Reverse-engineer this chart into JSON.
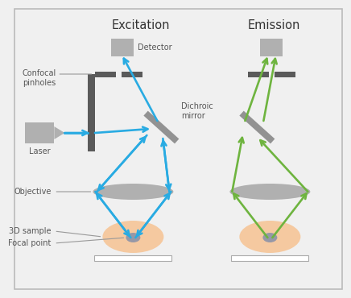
{
  "title_excitation": "Excitation",
  "title_emission": "Emission",
  "label_detector": "Detector",
  "label_pinholes": "Confocal\npinholes",
  "label_dichroic": "Dichroic\nmirror",
  "label_laser": "Laser",
  "label_objective": "Objective",
  "label_3dsample": "3D sample",
  "label_focal": "Focal point",
  "bg_color": "#f0f0f0",
  "blue": "#29ABE2",
  "green": "#6EB43F",
  "gray_dark": "#5a5a5a",
  "gray_light": "#b0b0b0",
  "gray_mid": "#888888",
  "peach": "#F5C9A0",
  "focal_color": "#7788aa",
  "border_color": "#bbbbbb",
  "label_color": "#555555",
  "title_color": "#333333"
}
